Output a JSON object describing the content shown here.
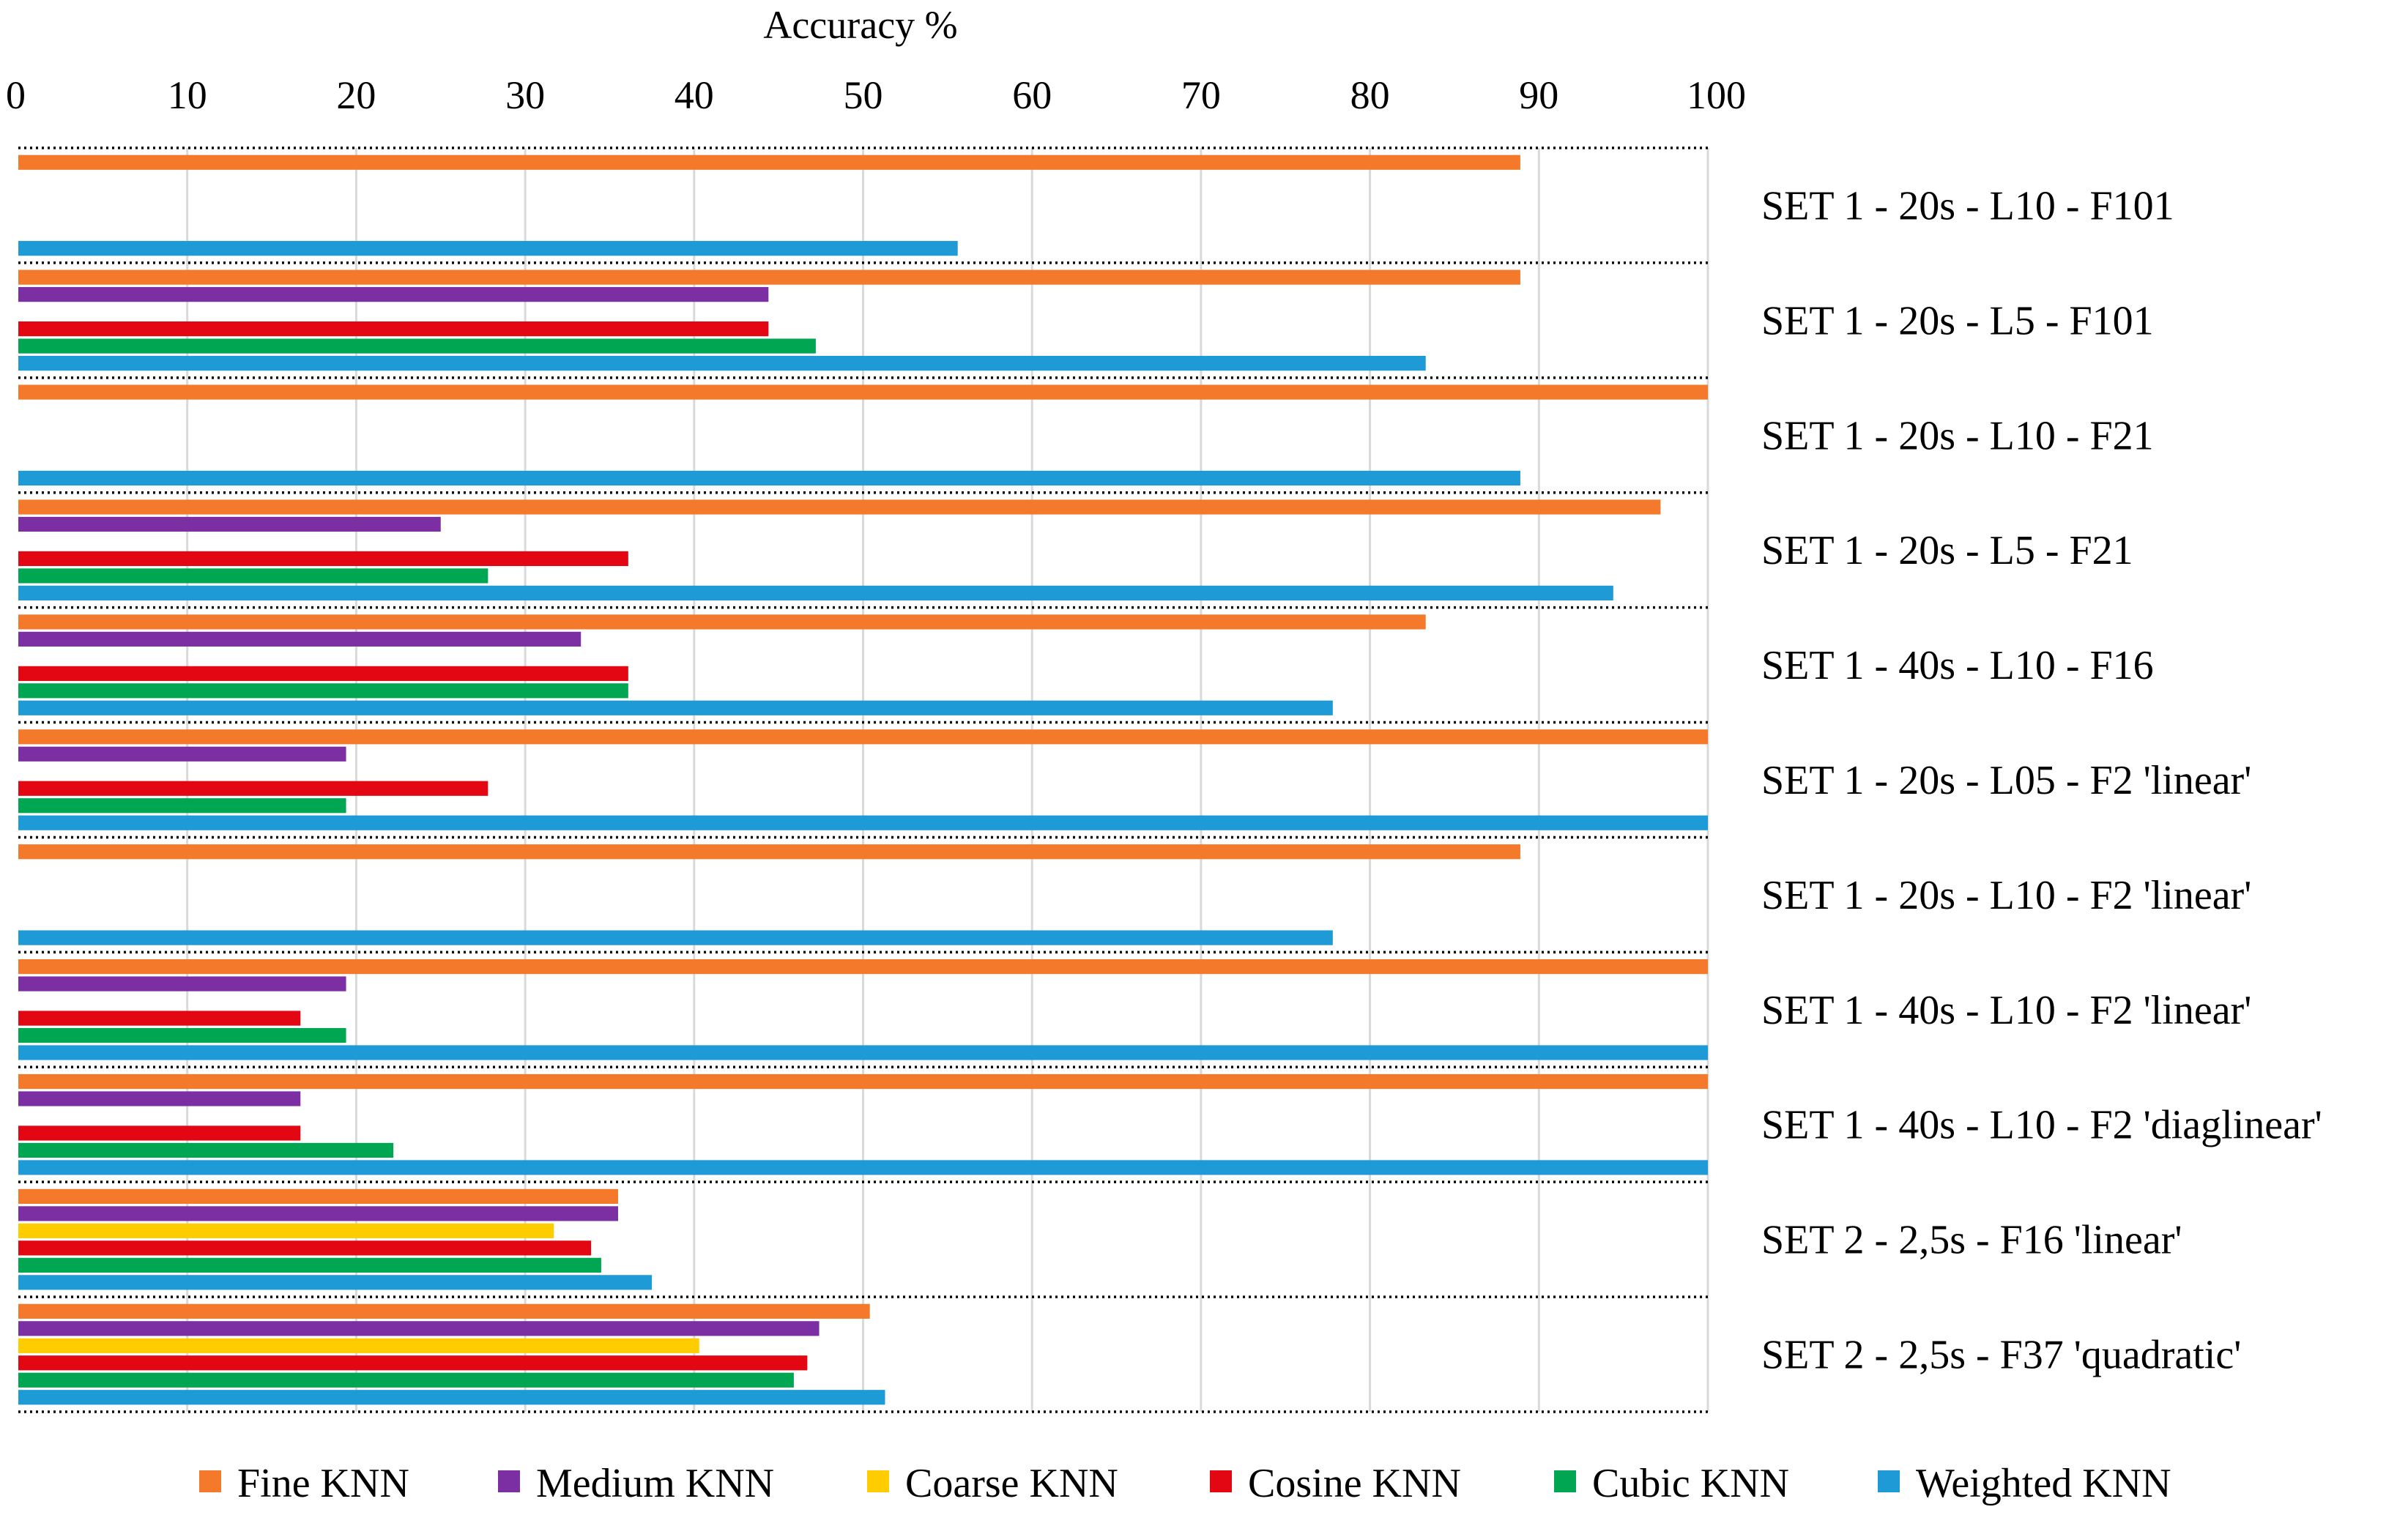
{
  "chart_data": {
    "type": "bar",
    "orientation": "horizontal",
    "title": "",
    "xlabel": "Accuracy %",
    "ylabel": "",
    "xlim": [
      0,
      100
    ],
    "x_ticks": [
      0,
      10,
      20,
      30,
      40,
      50,
      60,
      70,
      80,
      90,
      100
    ],
    "x_axis_position": "top",
    "category_label_position": "right",
    "grid": true,
    "legend_position": "bottom",
    "categories": [
      "SET 1 - 20s - L10 - F101",
      "SET 1 - 20s - L5 - F101",
      "SET 1 - 20s - L10 - F21",
      "SET 1 - 20s - L5 - F21",
      "SET 1 - 40s - L10 - F16",
      "SET 1 - 20s - L05 - F2 'linear'",
      "SET 1 - 20s - L10 - F2 'linear'",
      "SET 1 - 40s - L10 - F2 'linear'",
      "SET 1 - 40s - L10 - F2 'diaglinear'",
      "SET 2 - 2,5s - F16 'linear'",
      "SET 2 - 2,5s - F37 'quadratic'"
    ],
    "series": [
      {
        "name": "Fine KNN",
        "color": "#F5792A",
        "values": [
          88.9,
          88.9,
          100,
          97.2,
          83.3,
          100,
          88.9,
          100,
          100,
          35.5,
          50.4
        ]
      },
      {
        "name": "Medium KNN",
        "color": "#7B2FA3",
        "values": [
          0,
          44.4,
          0,
          25,
          33.3,
          19.4,
          0,
          19.4,
          16.7,
          35.5,
          47.4
        ]
      },
      {
        "name": "Coarse KNN",
        "color": "#FFCC00",
        "values": [
          0,
          0,
          0,
          0,
          0,
          0,
          0,
          0,
          0,
          31.7,
          40.3
        ]
      },
      {
        "name": "Cosine KNN",
        "color": "#E30613",
        "values": [
          0,
          44.4,
          0,
          36.1,
          36.1,
          27.8,
          0,
          16.7,
          16.7,
          33.9,
          46.7
        ]
      },
      {
        "name": "Cubic KNN",
        "color": "#00A651",
        "values": [
          0,
          47.2,
          0,
          27.8,
          36.1,
          19.4,
          0,
          19.4,
          22.2,
          34.5,
          45.9
        ]
      },
      {
        "name": "Weighted KNN",
        "color": "#1E9AD6",
        "values": [
          55.6,
          83.3,
          88.9,
          94.4,
          77.8,
          100,
          77.8,
          100,
          100,
          37.5,
          51.3
        ]
      }
    ]
  }
}
